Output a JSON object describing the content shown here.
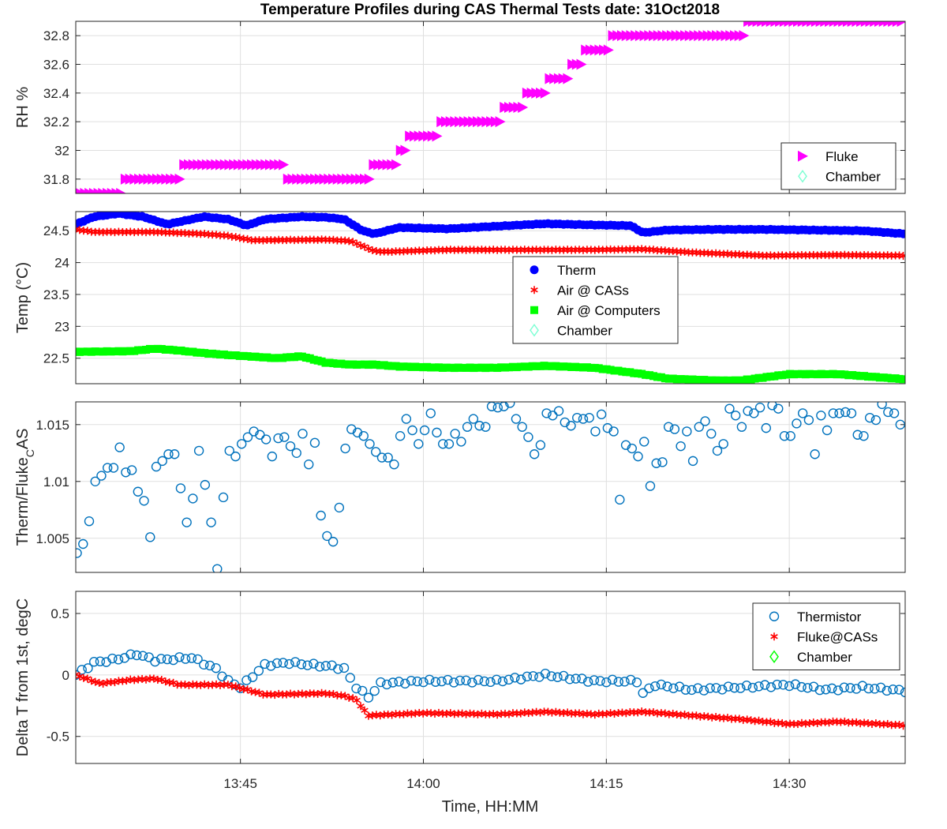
{
  "chart_data": {
    "type": "scatter",
    "title": "Temperature Profiles during CAS Thermal Tests date: 31Oct2018",
    "xlabel": "Time, HH:MM",
    "x_ticks": [
      "13:45",
      "14:00",
      "14:15",
      "14:30"
    ],
    "x_tick_minutes": [
      45,
      60,
      75,
      90
    ],
    "xlim_minutes": [
      31.5,
      99.5
    ],
    "x_axis_note": "minutes past 13:00",
    "grid": true,
    "panels": [
      {
        "ylabel": "RH %",
        "ylim": [
          31.7,
          32.9
        ],
        "yticks": [
          "31.8",
          "32",
          "32.2",
          "32.4",
          "32.6",
          "32.8"
        ],
        "legend": [
          "Fluke",
          "Chamber"
        ],
        "series": [
          {
            "name": "Fluke",
            "color": "#ff00ff",
            "marker": "triangle-right",
            "x": [
              31.5,
              35.3,
              35.4,
              40.3,
              40.4,
              48.8,
              48.9,
              55.5,
              55.6,
              57.8,
              57.9,
              58.5,
              58.6,
              64.2,
              64.4,
              66.4,
              66.6,
              67.2,
              67.4,
              69.1,
              69.3,
              73.0,
              73.2,
              75.3,
              75.5,
              86.5,
              86.7,
              99.5
            ],
            "y": [
              31.7,
              31.7,
              31.8,
              31.8,
              31.9,
              31.9,
              31.8,
              31.8,
              31.9,
              31.9,
              32.0,
              32.0,
              32.1,
              32.2,
              32.2,
              32.2,
              32.3,
              32.3,
              32.3,
              32.4,
              32.4,
              32.6,
              32.7,
              32.7,
              32.8,
              32.8,
              32.9,
              32.9
            ]
          },
          {
            "name": "Chamber",
            "color": "#7fffd4",
            "marker": "diamond",
            "x": [],
            "y": []
          }
        ]
      },
      {
        "ylabel": "Temp (°C)",
        "ylim": [
          22.1,
          24.8
        ],
        "yticks": [
          "22.5",
          "23",
          "23.5",
          "24",
          "24.5"
        ],
        "legend": [
          "Therm",
          "Air @ CASs",
          "Air @ Computers",
          "Chamber"
        ],
        "series": [
          {
            "name": "Therm",
            "color": "#0000ff",
            "marker": "filled-circle",
            "x": [
              31.5,
              33.0,
              35.0,
              37.0,
              39.0,
              42.0,
              44.0,
              45.5,
              47.0,
              50.0,
              52.0,
              53.5,
              55.0,
              56.0,
              58.0,
              62.0,
              66.0,
              70.0,
              74.0,
              77.0,
              78.0,
              80.0,
              84.0,
              88.0,
              92.0,
              96.0,
              99.5
            ],
            "y": [
              24.6,
              24.72,
              24.77,
              24.72,
              24.6,
              24.72,
              24.68,
              24.58,
              24.68,
              24.72,
              24.71,
              24.68,
              24.5,
              24.45,
              24.55,
              24.53,
              24.57,
              24.61,
              24.59,
              24.58,
              24.47,
              24.51,
              24.52,
              24.52,
              24.51,
              24.5,
              24.45
            ]
          },
          {
            "name": "Air @ CASs",
            "color": "#ff0000",
            "marker": "asterisk",
            "x": [
              31.5,
              33.0,
              38.0,
              42.0,
              44.0,
              46.0,
              52.0,
              54.0,
              55.0,
              56.0,
              57.0,
              62.0,
              68.0,
              74.0,
              78.0,
              82.0,
              88.0,
              94.0,
              99.5
            ],
            "y": [
              24.52,
              24.48,
              24.48,
              24.45,
              24.42,
              24.35,
              24.36,
              24.34,
              24.26,
              24.18,
              24.17,
              24.2,
              24.2,
              24.2,
              24.21,
              24.16,
              24.11,
              24.12,
              24.11
            ]
          },
          {
            "name": "Air @ Computers",
            "color": "#00ff00",
            "marker": "filled-square",
            "x": [
              31.5,
              36.0,
              38.0,
              40.0,
              42.0,
              44.0,
              48.0,
              50.0,
              52.0,
              54.0,
              56.0,
              58.0,
              62.0,
              66.0,
              70.0,
              74.0,
              78.0,
              80.0,
              84.0,
              86.0,
              90.0,
              94.0,
              96.0,
              99.5
            ],
            "y": [
              22.6,
              22.61,
              22.65,
              22.62,
              22.58,
              22.55,
              22.5,
              22.53,
              22.43,
              22.4,
              22.4,
              22.37,
              22.35,
              22.35,
              22.38,
              22.35,
              22.25,
              22.18,
              22.15,
              22.15,
              22.25,
              22.25,
              22.22,
              22.17
            ]
          },
          {
            "name": "Chamber",
            "color": "#7fffd4",
            "marker": "diamond",
            "x": [],
            "y": []
          }
        ]
      },
      {
        "ylabel": "Therm/Fluke_CAS",
        "ylim": [
          1.002,
          1.017
        ],
        "yticks": [
          "1.005",
          "1.01",
          "1.015"
        ],
        "series": [
          {
            "name": "Ratio",
            "color": "#0072bd",
            "marker": "open-circle",
            "x": [
              31.6,
              32.1,
              32.6,
              33.1,
              33.6,
              34.1,
              34.6,
              35.1,
              35.6,
              36.1,
              36.6,
              37.1,
              37.6,
              38.1,
              38.6,
              39.1,
              39.6,
              40.1,
              40.6,
              41.1,
              41.6,
              42.1,
              42.6,
              43.1,
              43.6,
              44.1,
              44.6,
              45.1,
              45.6,
              46.1,
              46.6,
              47.1,
              47.6,
              48.1,
              48.6,
              49.1,
              49.6,
              50.1,
              50.6,
              51.1,
              51.6,
              52.1,
              52.6,
              53.1,
              53.6,
              54.1,
              54.6,
              55.1,
              55.6,
              56.1,
              56.6,
              57.1,
              57.6,
              58.1,
              58.6,
              59.1,
              59.6,
              60.1,
              60.6,
              61.1,
              61.6,
              62.1,
              62.6,
              63.1,
              63.6,
              64.1,
              64.6,
              65.1,
              65.6,
              66.1,
              66.6,
              67.1,
              67.6,
              68.1,
              68.6,
              69.1,
              69.6,
              70.1,
              70.6,
              71.1,
              71.6,
              72.1,
              72.6,
              73.1,
              73.6,
              74.1,
              74.6,
              75.1,
              75.6,
              76.1,
              76.6,
              77.1,
              77.6,
              78.1,
              78.6,
              79.1,
              79.6,
              80.1,
              80.6,
              81.1,
              81.6,
              82.1,
              82.6,
              83.1,
              83.6,
              84.1,
              84.6,
              85.1,
              85.6,
              86.1,
              86.6,
              87.1,
              87.6,
              88.1,
              88.6,
              89.1,
              89.6,
              90.1,
              90.6,
              91.1,
              91.6,
              92.1,
              92.6,
              93.1,
              93.6,
              94.1,
              94.6,
              95.1,
              95.6,
              96.1,
              96.6,
              97.1,
              97.6,
              98.1,
              98.6,
              99.1
            ],
            "y": [
              1.0037,
              1.0045,
              1.0065,
              1.01,
              1.0105,
              1.0112,
              1.0112,
              1.013,
              1.0108,
              1.011,
              1.0091,
              1.0083,
              1.0051,
              1.0113,
              1.0118,
              1.0124,
              1.0124,
              1.0094,
              1.0064,
              1.0085,
              1.0127,
              1.0097,
              1.0064,
              1.0023,
              1.0086,
              1.0127,
              1.0122,
              1.0133,
              1.0139,
              1.0144,
              1.0141,
              1.0137,
              1.0122,
              1.0138,
              1.0139,
              1.0131,
              1.0125,
              1.0142,
              1.0115,
              1.0134,
              1.007,
              1.0052,
              1.0047,
              1.0077,
              1.0129,
              1.0146,
              1.0143,
              1.014,
              1.0133,
              1.0126,
              1.0121,
              1.0121,
              1.0115,
              1.014,
              1.0155,
              1.0145,
              1.0133,
              1.0145,
              1.016,
              1.0143,
              1.0133,
              1.0133,
              1.0142,
              1.0135,
              1.0148,
              1.0155,
              1.0149,
              1.0148,
              1.0166,
              1.0165,
              1.0166,
              1.0169,
              1.0155,
              1.0148,
              1.0139,
              1.0124,
              1.0132,
              1.016,
              1.0158,
              1.0162,
              1.0152,
              1.0149,
              1.0156,
              1.0155,
              1.0156,
              1.0144,
              1.0159,
              1.0147,
              1.0144,
              1.0084,
              1.0132,
              1.0129,
              1.0122,
              1.0135,
              1.0096,
              1.0116,
              1.0117,
              1.0148,
              1.0146,
              1.0131,
              1.0144,
              1.0118,
              1.0148,
              1.0153,
              1.0142,
              1.0127,
              1.0133,
              1.0164,
              1.0158,
              1.0148,
              1.0162,
              1.016,
              1.0165,
              1.0147,
              1.0167,
              1.0164,
              1.014,
              1.014,
              1.0151,
              1.016,
              1.0154,
              1.0124,
              1.0158,
              1.0145,
              1.016,
              1.016,
              1.0161,
              1.016,
              1.0141,
              1.014,
              1.0156,
              1.0154,
              1.0168,
              1.0161,
              1.016,
              1.015
            ]
          }
        ]
      },
      {
        "ylabel": "Delta T from 1st, degC",
        "ylim": [
          -0.72,
          0.68
        ],
        "yticks": [
          "-0.5",
          "0",
          "0.5"
        ],
        "legend": [
          "Thermistor",
          "Fluke@CASs",
          "Chamber"
        ],
        "series": [
          {
            "name": "Thermistor",
            "color": "#0072bd",
            "marker": "open-circle",
            "x": [
              31.5,
              33.0,
              35.0,
              36.5,
              38.0,
              41.0,
              43.0,
              44.0,
              45.0,
              47.0,
              49.0,
              51.0,
              52.5,
              53.5,
              54.5,
              55.5,
              56.5,
              60.0,
              66.0,
              70.0,
              74.0,
              77.5,
              78.0,
              79.0,
              82.0,
              86.0,
              90.0,
              93.0,
              96.0,
              99.5
            ],
            "y": [
              0.0,
              0.1,
              0.13,
              0.17,
              0.12,
              0.14,
              0.05,
              -0.05,
              -0.1,
              0.08,
              0.1,
              0.08,
              0.07,
              0.05,
              -0.1,
              -0.18,
              -0.07,
              -0.05,
              -0.05,
              0.0,
              -0.05,
              -0.05,
              -0.15,
              -0.08,
              -0.12,
              -0.1,
              -0.08,
              -0.12,
              -0.1,
              -0.13
            ]
          },
          {
            "name": "Fluke@CASs",
            "color": "#ff0000",
            "marker": "asterisk",
            "x": [
              31.5,
              33.5,
              36.0,
              38.0,
              40.0,
              44.0,
              45.5,
              47.0,
              52.0,
              53.5,
              54.5,
              55.0,
              55.5,
              60.0,
              66.0,
              70.0,
              74.0,
              78.0,
              82.0,
              86.0,
              90.0,
              94.0,
              99.5
            ],
            "y": [
              0.0,
              -0.07,
              -0.04,
              -0.03,
              -0.08,
              -0.08,
              -0.12,
              -0.16,
              -0.15,
              -0.17,
              -0.2,
              -0.27,
              -0.33,
              -0.31,
              -0.32,
              -0.3,
              -0.32,
              -0.3,
              -0.33,
              -0.36,
              -0.4,
              -0.38,
              -0.41
            ]
          },
          {
            "name": "Chamber",
            "color": "#00ff00",
            "marker": "diamond",
            "x": [],
            "y": []
          }
        ]
      }
    ]
  }
}
